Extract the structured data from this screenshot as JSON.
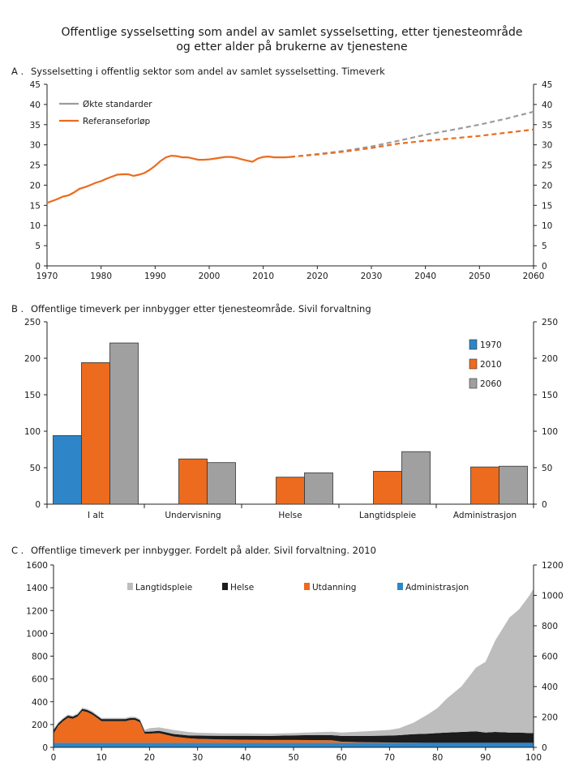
{
  "title_line1": "Offentlige sysselsetting som andel av samlet sysselsetting, etter tjenesteområde",
  "title_line2": "og etter alder på brukerne av tjenestene",
  "colors": {
    "blue": "#2e86c8",
    "orange": "#ec6b1e",
    "gray": "#a0a0a0",
    "gray_dashed": "#9c9c9c",
    "light_gray": "#bdbdbd",
    "black": "#1c1c1c"
  },
  "chart_data": [
    {
      "id": "A",
      "type": "line",
      "panel_letter": "A .",
      "title": "Sysselsetting i offentlig sektor som andel av samlet sysselsetting. Timeverk",
      "xlim": [
        1970,
        2060
      ],
      "ylim": [
        0,
        45
      ],
      "x_ticks": [
        1970,
        1980,
        1990,
        2000,
        2010,
        2020,
        2030,
        2040,
        2050,
        2060
      ],
      "y_ticks": [
        0,
        5,
        10,
        15,
        20,
        25,
        30,
        35,
        40,
        45
      ],
      "legend": [
        {
          "label": "Økte standarder",
          "series": "okte"
        },
        {
          "label": "Referanseforløp",
          "series": "referanse"
        }
      ],
      "series": {
        "historical": {
          "name": "Historisk",
          "x": [
            1970,
            1971,
            1972,
            1973,
            1974,
            1975,
            1976,
            1977,
            1978,
            1979,
            1980,
            1981,
            1982,
            1983,
            1984,
            1985,
            1986,
            1987,
            1988,
            1989,
            1990,
            1991,
            1992,
            1993,
            1994,
            1995,
            1996,
            1997,
            1998,
            1999,
            2000,
            2001,
            2002,
            2003,
            2004,
            2005,
            2006,
            2007,
            2008,
            2009,
            2010,
            2011,
            2012,
            2013,
            2014,
            2015
          ],
          "y": [
            15.6,
            16.1,
            16.6,
            17.2,
            17.5,
            18.2,
            19.1,
            19.5,
            20.0,
            20.6,
            21.0,
            21.6,
            22.1,
            22.6,
            22.7,
            22.7,
            22.3,
            22.6,
            23.0,
            23.8,
            24.8,
            26.0,
            26.9,
            27.3,
            27.2,
            26.9,
            26.9,
            26.6,
            26.3,
            26.3,
            26.4,
            26.6,
            26.8,
            27.0,
            27.0,
            26.8,
            26.4,
            26.1,
            25.8,
            26.6,
            27.0,
            27.1,
            26.9,
            26.9,
            26.9,
            27.0
          ]
        },
        "okte": {
          "name": "Økte standarder",
          "x": [
            2015,
            2020,
            2025,
            2030,
            2035,
            2040,
            2045,
            2050,
            2055,
            2060
          ],
          "y": [
            27.0,
            27.7,
            28.5,
            29.6,
            31.0,
            32.5,
            33.7,
            35.0,
            36.5,
            38.2
          ]
        },
        "referanse": {
          "name": "Referanseforløp",
          "x": [
            2015,
            2020,
            2025,
            2030,
            2035,
            2040,
            2045,
            2050,
            2055,
            2060
          ],
          "y": [
            27.0,
            27.6,
            28.3,
            29.2,
            30.3,
            31.0,
            31.6,
            32.2,
            33.0,
            33.8
          ]
        }
      }
    },
    {
      "id": "B",
      "type": "bar",
      "panel_letter": "B .",
      "title": "Offentlige timeverk per innbygger etter tjenesteområde. Sivil forvaltning",
      "ylim": [
        0,
        250
      ],
      "y_ticks": [
        0,
        50,
        100,
        150,
        200,
        250
      ],
      "categories": [
        "I alt",
        "Undervisning",
        "Helse",
        "Langtidspleie",
        "Administrasjon"
      ],
      "series": [
        {
          "name": "1970",
          "values": [
            94,
            null,
            null,
            null,
            null
          ]
        },
        {
          "name": "2010",
          "values": [
            194,
            62,
            37,
            45,
            51
          ]
        },
        {
          "name": "2060",
          "values": [
            221,
            57,
            43,
            72,
            52
          ]
        }
      ]
    },
    {
      "id": "C",
      "type": "area",
      "panel_letter": "C .",
      "title": "Offentlige timeverk per innbygger. Fordelt på alder. Sivil forvaltning. 2010",
      "xlim": [
        0,
        100
      ],
      "ylim_left": [
        0,
        1600
      ],
      "ylim_right": [
        0,
        1200
      ],
      "x_ticks": [
        0,
        10,
        20,
        30,
        40,
        50,
        60,
        70,
        80,
        90,
        100
      ],
      "y_ticks_left": [
        0,
        200,
        400,
        600,
        800,
        1000,
        1200,
        1400,
        1600
      ],
      "y_ticks_right": [
        0,
        200,
        400,
        600,
        800,
        1000,
        1200
      ],
      "legend": [
        "Langtidspleie",
        "Helse",
        "Utdanning",
        "Administrasjon"
      ],
      "x": [
        0,
        1,
        2,
        3,
        4,
        5,
        6,
        7,
        8,
        9,
        10,
        12,
        14,
        15,
        16,
        17,
        18,
        19,
        20,
        22,
        25,
        28,
        30,
        35,
        40,
        45,
        50,
        55,
        58,
        60,
        65,
        70,
        72,
        75,
        78,
        80,
        82,
        85,
        88,
        90,
        92,
        95,
        97,
        99,
        100
      ],
      "series": [
        {
          "name": "Administrasjon",
          "values": [
            40,
            40,
            40,
            40,
            40,
            40,
            40,
            40,
            40,
            40,
            40,
            40,
            40,
            40,
            40,
            40,
            40,
            40,
            40,
            40,
            40,
            40,
            40,
            40,
            40,
            40,
            40,
            40,
            40,
            40,
            40,
            40,
            40,
            40,
            40,
            40,
            40,
            40,
            40,
            40,
            40,
            40,
            40,
            40,
            40
          ]
        },
        {
          "name": "Utdanning",
          "values": [
            80,
            150,
            190,
            220,
            210,
            230,
            280,
            270,
            250,
            220,
            190,
            190,
            190,
            190,
            200,
            200,
            180,
            80,
            80,
            85,
            55,
            40,
            35,
            30,
            27,
            25,
            25,
            23,
            22,
            10,
            5,
            3,
            2,
            1,
            0,
            0,
            0,
            0,
            0,
            0,
            0,
            0,
            0,
            0,
            0
          ]
        },
        {
          "name": "Helse",
          "values": [
            30,
            20,
            18,
            18,
            18,
            18,
            18,
            18,
            18,
            18,
            18,
            18,
            18,
            18,
            18,
            18,
            18,
            18,
            18,
            20,
            22,
            25,
            28,
            32,
            35,
            35,
            40,
            45,
            45,
            50,
            55,
            60,
            65,
            75,
            80,
            85,
            90,
            95,
            100,
            90,
            95,
            90,
            90,
            85,
            85
          ]
        },
        {
          "name": "Langtidspleie",
          "values": [
            10,
            10,
            10,
            10,
            10,
            10,
            10,
            10,
            10,
            10,
            10,
            10,
            10,
            10,
            10,
            10,
            10,
            15,
            30,
            30,
            35,
            30,
            25,
            20,
            20,
            20,
            20,
            25,
            30,
            30,
            40,
            50,
            60,
            100,
            170,
            220,
            300,
            400,
            560,
            620,
            800,
            1010,
            1080,
            1200,
            1265
          ]
        }
      ]
    }
  ]
}
